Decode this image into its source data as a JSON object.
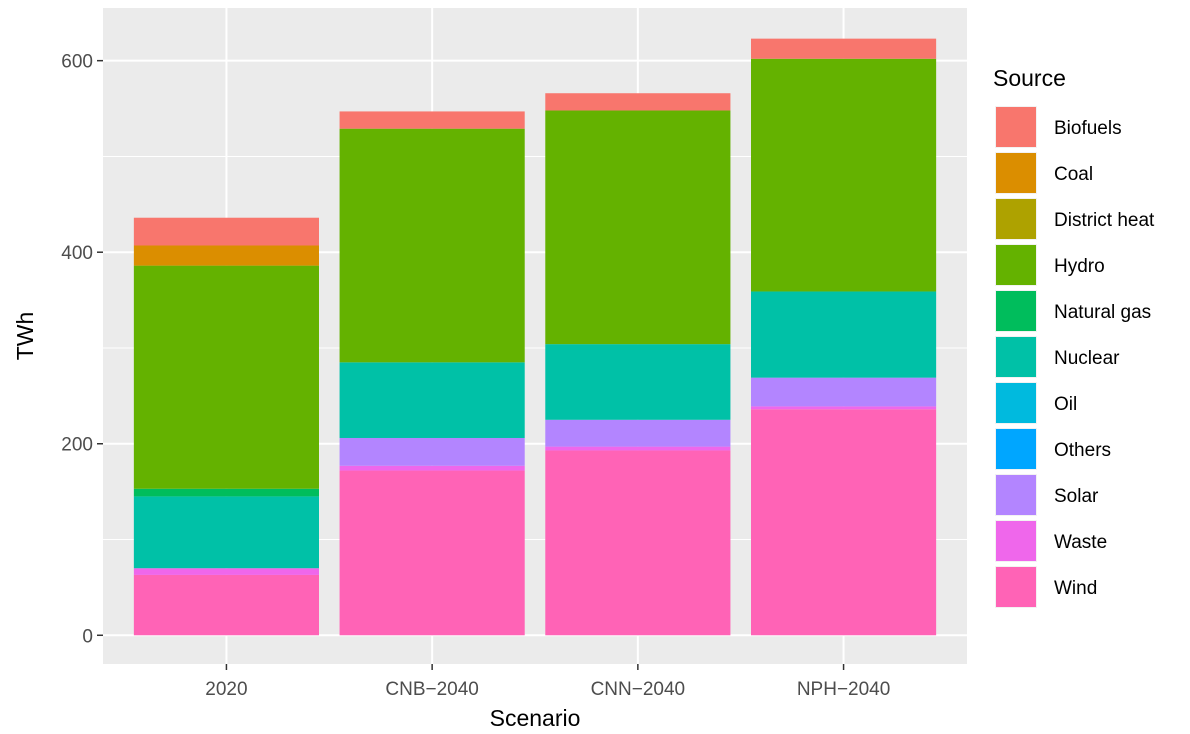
{
  "chart_data": {
    "type": "bar",
    "stacked": true,
    "xlabel": "Scenario",
    "ylabel": "TWh",
    "categories": [
      "2020",
      "CNB−2040",
      "CNN−2040",
      "NPH−2040"
    ],
    "ylim": [
      -30,
      655
    ],
    "yticks": [
      0,
      200,
      400,
      600
    ],
    "grid": true,
    "legend": {
      "title": "Source",
      "position": "right"
    },
    "series": [
      {
        "name": "Biofuels",
        "color": "#F8766D",
        "values": [
          29,
          18,
          18,
          21
        ]
      },
      {
        "name": "Coal",
        "color": "#DB8E00",
        "values": [
          21,
          0,
          0,
          0
        ]
      },
      {
        "name": "District heat",
        "color": "#AEA200",
        "values": [
          0,
          0,
          0,
          0
        ]
      },
      {
        "name": "Hydro",
        "color": "#64B200",
        "values": [
          233,
          244,
          244,
          243
        ]
      },
      {
        "name": "Natural gas",
        "color": "#00BD5C",
        "values": [
          8,
          0,
          0,
          0
        ]
      },
      {
        "name": "Nuclear",
        "color": "#00C1A7",
        "values": [
          75,
          79,
          79,
          90
        ]
      },
      {
        "name": "Oil",
        "color": "#00BADE",
        "values": [
          0,
          0,
          0,
          0
        ]
      },
      {
        "name": "Others",
        "color": "#00A6FF",
        "values": [
          0,
          0,
          0,
          0
        ]
      },
      {
        "name": "Solar",
        "color": "#B385FF",
        "values": [
          0,
          29,
          28,
          30
        ]
      },
      {
        "name": "Waste",
        "color": "#EF67EB",
        "values": [
          7,
          5,
          4,
          3
        ]
      },
      {
        "name": "Wind",
        "color": "#FF63B6",
        "values": [
          63,
          172,
          193,
          236
        ]
      }
    ]
  }
}
